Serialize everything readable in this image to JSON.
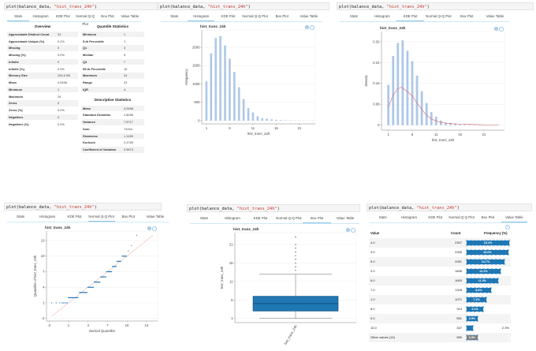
{
  "code": {
    "fn": "plot(balance_data, ",
    "arg": "\"hist_trans_24h\"",
    "close": ")"
  },
  "tabs": [
    "Stats",
    "Histogram",
    "KDE Plot",
    "Normal Q-Q Plot",
    "Box Plot",
    "Value Table"
  ],
  "panels": [
    {
      "active_tab": "Stats"
    },
    {
      "active_tab": "Histogram"
    },
    {
      "active_tab": "KDE Plot"
    },
    {
      "active_tab": "Normal Q-Q Plot"
    },
    {
      "active_tab": "Box Plot"
    },
    {
      "active_tab": "Value Table"
    }
  ],
  "stats": {
    "overview_title": "Overview",
    "overview": [
      [
        "Approximate Distinct Count",
        "24"
      ],
      [
        "Approximate Unique (%)",
        "0.2%"
      ],
      [
        "Missing",
        "0"
      ],
      [
        "Missing (%)",
        "0.0%"
      ],
      [
        "Infinite",
        "0"
      ],
      [
        "Infinite (%)",
        "0.0%"
      ],
      [
        "Memory Size",
        "234.6 KB"
      ],
      [
        "Mean",
        "4.9456"
      ],
      [
        "Minimum",
        "1"
      ],
      [
        "Maximum",
        "24"
      ],
      [
        "Zeros",
        "0"
      ],
      [
        "Zeros (%)",
        "0.0%"
      ],
      [
        "Negatives",
        "0"
      ],
      [
        "Negatives (%)",
        "0.0%"
      ]
    ],
    "quantile_title": "Quantile Statistics",
    "quantiles": [
      [
        "Minimum",
        "1"
      ],
      [
        "5-th Percentile",
        "1"
      ],
      [
        "Q1",
        "3"
      ],
      [
        "Median",
        "5"
      ],
      [
        "Q3",
        "7"
      ],
      [
        "95-th Percentile",
        "10"
      ],
      [
        "Maximum",
        "24"
      ],
      [
        "Range",
        "23"
      ],
      [
        "IQR",
        "4"
      ]
    ],
    "descriptive_title": "Descriptive Statistics",
    "descriptive": [
      [
        "Mean",
        "4.9456"
      ],
      [
        "Standard Deviation",
        "2.8056"
      ],
      [
        "Variance",
        "7.8717"
      ],
      [
        "Sum",
        "74244"
      ],
      [
        "Skewness",
        "1.1459"
      ],
      [
        "Kurtosis",
        "2.4765"
      ],
      [
        "Coefficient of Variation",
        "0.5673"
      ]
    ]
  },
  "value_table": {
    "headers": {
      "value": "Value",
      "count": "Count",
      "freq": "Frequency (%)"
    },
    "bar_color": "#1f77b4",
    "other_color": "#7f7f7f",
    "rows": [
      {
        "value": "4.0",
        "count": "2307",
        "pct": 15.4,
        "label": "15.4%"
      },
      {
        "value": "3.0",
        "count": "2255",
        "pct": 15.0,
        "label": "15.0%"
      },
      {
        "value": "5.0",
        "count": "2051",
        "pct": 13.7,
        "label": "13.7%"
      },
      {
        "value": "2.0",
        "count": "1836",
        "pct": 12.2,
        "label": "12.2%"
      },
      {
        "value": "6.0",
        "count": "1693",
        "pct": 11.3,
        "label": "11.3%"
      },
      {
        "value": "7.0",
        "count": "1328",
        "pct": 8.8,
        "label": "8.8%"
      },
      {
        "value": "1.0",
        "count": "1071",
        "pct": 7.1,
        "label": "7.1%"
      },
      {
        "value": "8.0",
        "count": "914",
        "pct": 6.1,
        "label": "6.1%"
      },
      {
        "value": "9.0",
        "count": "591",
        "pct": 3.9,
        "label": "3.9%"
      },
      {
        "value": "10.0",
        "count": "347",
        "pct": 2.3,
        "label": "2.3%",
        "outside": true
      },
      {
        "value": "Other values (14)",
        "count": "589",
        "pct": 3.9,
        "label": "3.9%",
        "other": true
      }
    ]
  },
  "chart_data": [
    {
      "type": "bar",
      "title": "hist_trans_24h",
      "xlabel": "hist_trans_24h",
      "ylabel": "Frequency",
      "categories": [
        1,
        2,
        3,
        4,
        5,
        6,
        7,
        8,
        9,
        10,
        11,
        12,
        13,
        14,
        15,
        16,
        17,
        18,
        19,
        20,
        21,
        22,
        23,
        24
      ],
      "values": [
        1071,
        1836,
        2255,
        2307,
        2051,
        1693,
        1328,
        914,
        591,
        347,
        225,
        120,
        65,
        55,
        35,
        25,
        18,
        12,
        10,
        8,
        6,
        4,
        3,
        3
      ],
      "xticks": [
        1,
        6,
        11,
        16,
        21
      ],
      "yticks": [
        0,
        500,
        1000,
        1500,
        2000
      ],
      "ylim": [
        0,
        2470
      ],
      "color": "#aec7e8",
      "grid": true
    },
    {
      "type": "bar",
      "title": "hist_trans_24h",
      "xlabel": "hist_trans_24h",
      "ylabel": "Density",
      "categories": [
        1,
        2,
        3,
        4,
        5,
        6,
        7,
        8,
        9,
        10,
        11,
        12,
        13,
        14,
        15,
        16,
        17,
        18,
        19,
        20,
        21,
        22,
        23,
        24
      ],
      "values": [
        0.155,
        0.265,
        0.315,
        0.325,
        0.285,
        0.245,
        0.19,
        0.13,
        0.085,
        0.05,
        0.033,
        0.018,
        0.01,
        0.009,
        0.007,
        0.005,
        0.004,
        0.003,
        0.002,
        0.002,
        0.001,
        0.001,
        0.001,
        0.001
      ],
      "kde": {
        "x": [
          1,
          2,
          3,
          3.7,
          4,
          5,
          6,
          7,
          8,
          9,
          10,
          11,
          12,
          13,
          14,
          16,
          18,
          20,
          22,
          24
        ],
        "y": [
          0.068,
          0.115,
          0.14,
          0.145,
          0.142,
          0.128,
          0.112,
          0.085,
          0.06,
          0.038,
          0.024,
          0.016,
          0.011,
          0.008,
          0.006,
          0.004,
          0.003,
          0.002,
          0.001,
          0.001
        ],
        "color": "#e06666"
      },
      "xticks": [
        1,
        6,
        11,
        16,
        21
      ],
      "yticks": [
        0,
        0.08,
        0.16,
        0.24,
        0.32
      ],
      "ylim": [
        0,
        0.36
      ],
      "color": "#aec7e8",
      "grid": true
    },
    {
      "type": "scatter",
      "title": "hist_trans_24h",
      "xlabel": "Normal Quantiles",
      "ylabel": "Quantiles of hist_trans_24h",
      "segments": [
        {
          "y": 2,
          "x": [
            0.9,
            2.5
          ]
        },
        {
          "y": 3,
          "x": [
            2.6,
            3.9
          ]
        },
        {
          "y": 4,
          "x": [
            3.9,
            4.9
          ]
        },
        {
          "y": 5,
          "x": [
            4.9,
            5.9
          ]
        },
        {
          "y": 6,
          "x": [
            5.9,
            6.8
          ]
        },
        {
          "y": 7,
          "x": [
            6.8,
            7.7
          ]
        },
        {
          "y": 8,
          "x": [
            7.7,
            8.4
          ]
        },
        {
          "y": 9,
          "x": [
            8.4,
            9.1
          ]
        },
        {
          "y": 10,
          "x": [
            9.2,
            10.0
          ]
        }
      ],
      "points": [
        [
          -1.6,
          1
        ],
        [
          -0.9,
          1
        ],
        [
          -0.35,
          1
        ],
        [
          0,
          1
        ],
        [
          0.2,
          1
        ],
        [
          0.4,
          1
        ],
        [
          0.6,
          1
        ],
        [
          0.8,
          1
        ],
        [
          10.2,
          11
        ],
        [
          10.7,
          12
        ],
        [
          11.5,
          14
        ]
      ],
      "reference_line": {
        "x": [
          -1.6,
          14
        ],
        "y": [
          -1.6,
          14
        ],
        "color": "#e8917e"
      },
      "xticks": [
        -2,
        1,
        4,
        7,
        10,
        13
      ],
      "yticks": [
        -2,
        1,
        4,
        7,
        10,
        13
      ],
      "xlim": [
        -2.4,
        14.7
      ],
      "ylim": [
        -2.5,
        14.8
      ],
      "color": "#1f77b4",
      "grid": true
    },
    {
      "type": "box",
      "title": "hist_trans_24h",
      "ylabel": "hist_trans_24h",
      "categories": [
        "hist_trans_24h"
      ],
      "whisker_low": 1,
      "q1": 3,
      "median": 5,
      "q3": 7,
      "whisker_high": 13,
      "outliers": [
        14,
        15,
        16,
        17,
        18,
        19,
        20,
        21,
        23
      ],
      "yticks": [
        1,
        6,
        11,
        16,
        21
      ],
      "ylim": [
        0,
        24.2
      ],
      "color": "#1f77b4",
      "grid": true
    }
  ]
}
